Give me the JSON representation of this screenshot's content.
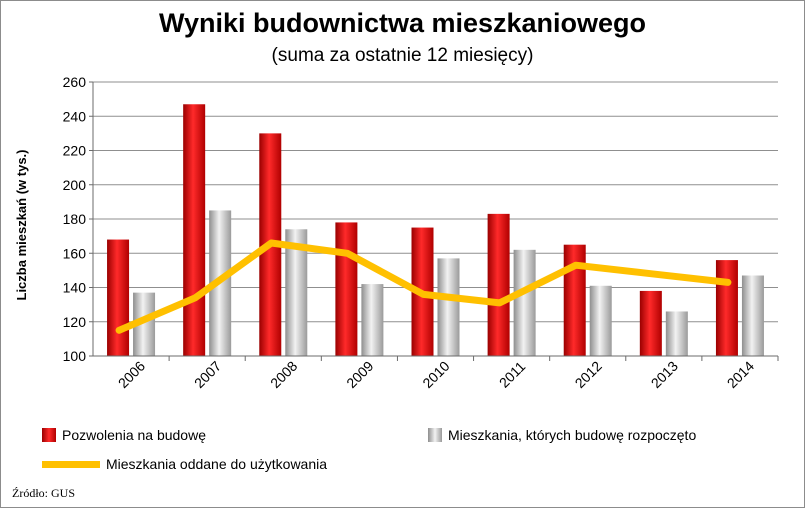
{
  "chart_data": {
    "type": "bar",
    "title": "Wyniki budownictwa mieszkaniowego",
    "subtitle": "(suma za ostatnie 12 miesięcy)",
    "ylabel": "Liczba mieszkań (w tys.)",
    "xlabel": "",
    "ylim": [
      100,
      260
    ],
    "yticks": [
      100,
      120,
      140,
      160,
      180,
      200,
      220,
      240,
      260
    ],
    "categories": [
      "2006",
      "2007",
      "2008",
      "2009",
      "2010",
      "2011",
      "2012",
      "2013",
      "2014"
    ],
    "series": [
      {
        "name": "Pozwolenia na budowę",
        "type": "bar",
        "color": "#e8060a",
        "values": [
          168,
          247,
          230,
          178,
          175,
          183,
          165,
          138,
          156
        ]
      },
      {
        "name": "Mieszkania, których budowę rozpoczęto",
        "type": "bar",
        "color": "#bcbcbc",
        "values": [
          137,
          185,
          174,
          142,
          157,
          162,
          141,
          126,
          147
        ]
      },
      {
        "name": "Mieszkania oddane do użytkowania",
        "type": "line",
        "color": "#ffc000",
        "values": [
          115,
          134,
          166,
          160,
          136,
          131,
          153,
          148,
          143
        ]
      }
    ],
    "grid": true,
    "legend": "bottom"
  },
  "source": "Źródło: GUS"
}
